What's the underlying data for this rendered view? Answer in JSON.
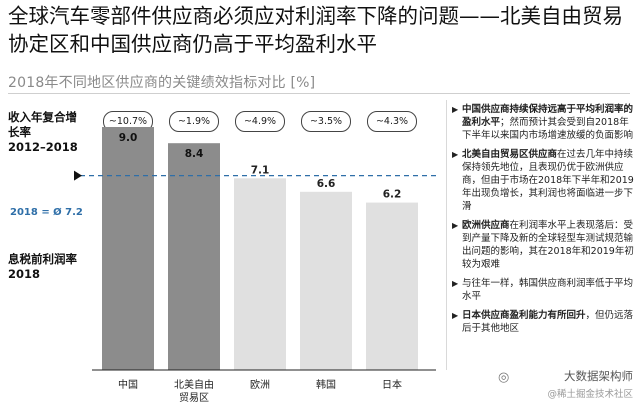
{
  "title": "全球汽车零部件供应商必须应对利润率下降的问题——北美自由贸易协定区和中国供应商仍高于平均盈利水平",
  "subtitle": "2018年不同地区供应商的关键绩效指标对比 [%]",
  "cagr_label": [
    "收入年复合增",
    "长率",
    "2012–2018"
  ],
  "ebit_label": [
    "息税前利润率",
    "2018"
  ],
  "avg_label": "2018 = Ø 7.2",
  "chart_data": {
    "type": "bar",
    "categories": [
      "中国",
      "北美自由贸易区",
      "欧洲",
      "韩国",
      "日本"
    ],
    "category_lines": [
      [
        "中国"
      ],
      [
        "北美自由",
        "贸易区"
      ],
      [
        "欧洲"
      ],
      [
        "韩国"
      ],
      [
        "日本"
      ]
    ],
    "values": [
      9.0,
      8.4,
      7.1,
      6.6,
      6.2
    ],
    "value_labels": [
      "9.0",
      "8.4",
      "7.1",
      "6.6",
      "6.2"
    ],
    "cagr": [
      "~10.7%",
      "~1.9%",
      "~4.9%",
      "~3.5%",
      "~4.3%"
    ],
    "average": 7.2,
    "ylim": [
      0,
      10
    ],
    "colors": {
      "highlight": "#8c8c8c",
      "normal": "#e0e0e0",
      "label_normal": "#222222",
      "average_line": "#2f6fa8",
      "axis": "#222222"
    },
    "highlight": [
      true,
      true,
      false,
      false,
      false
    ]
  },
  "notes": [
    {
      "bold": "中国供应商持续保持远高于平均利润率的盈利水平",
      "text": "；然而预计其会受到自2018年下半年以来国内市场增速放缓的负面影响"
    },
    {
      "bold": "北美自由贸易区供应商",
      "text": "在过去几年中持续保持领先地位，且表现仍优于欧洲供应商，但由于市场在2018年下半年和2019年出现负增长，其利润也将面临进一步下滑"
    },
    {
      "bold": "欧洲供应商",
      "text": "在利润率水平上表现落后：受到产量下降及新的全球轻型车测试规范输出问题的影响，其在2018年和2019年初较为艰难"
    },
    {
      "bold": "",
      "text": "与往年一样，韩国供应商利润率低于平均水平"
    },
    {
      "bold": "日本供应商盈利能力有所回升",
      "text": "，但仍远落后于其他地区"
    }
  ],
  "watermark": {
    "line1": "大数据架构师",
    "line2": "@稀土掘金技术社区"
  }
}
